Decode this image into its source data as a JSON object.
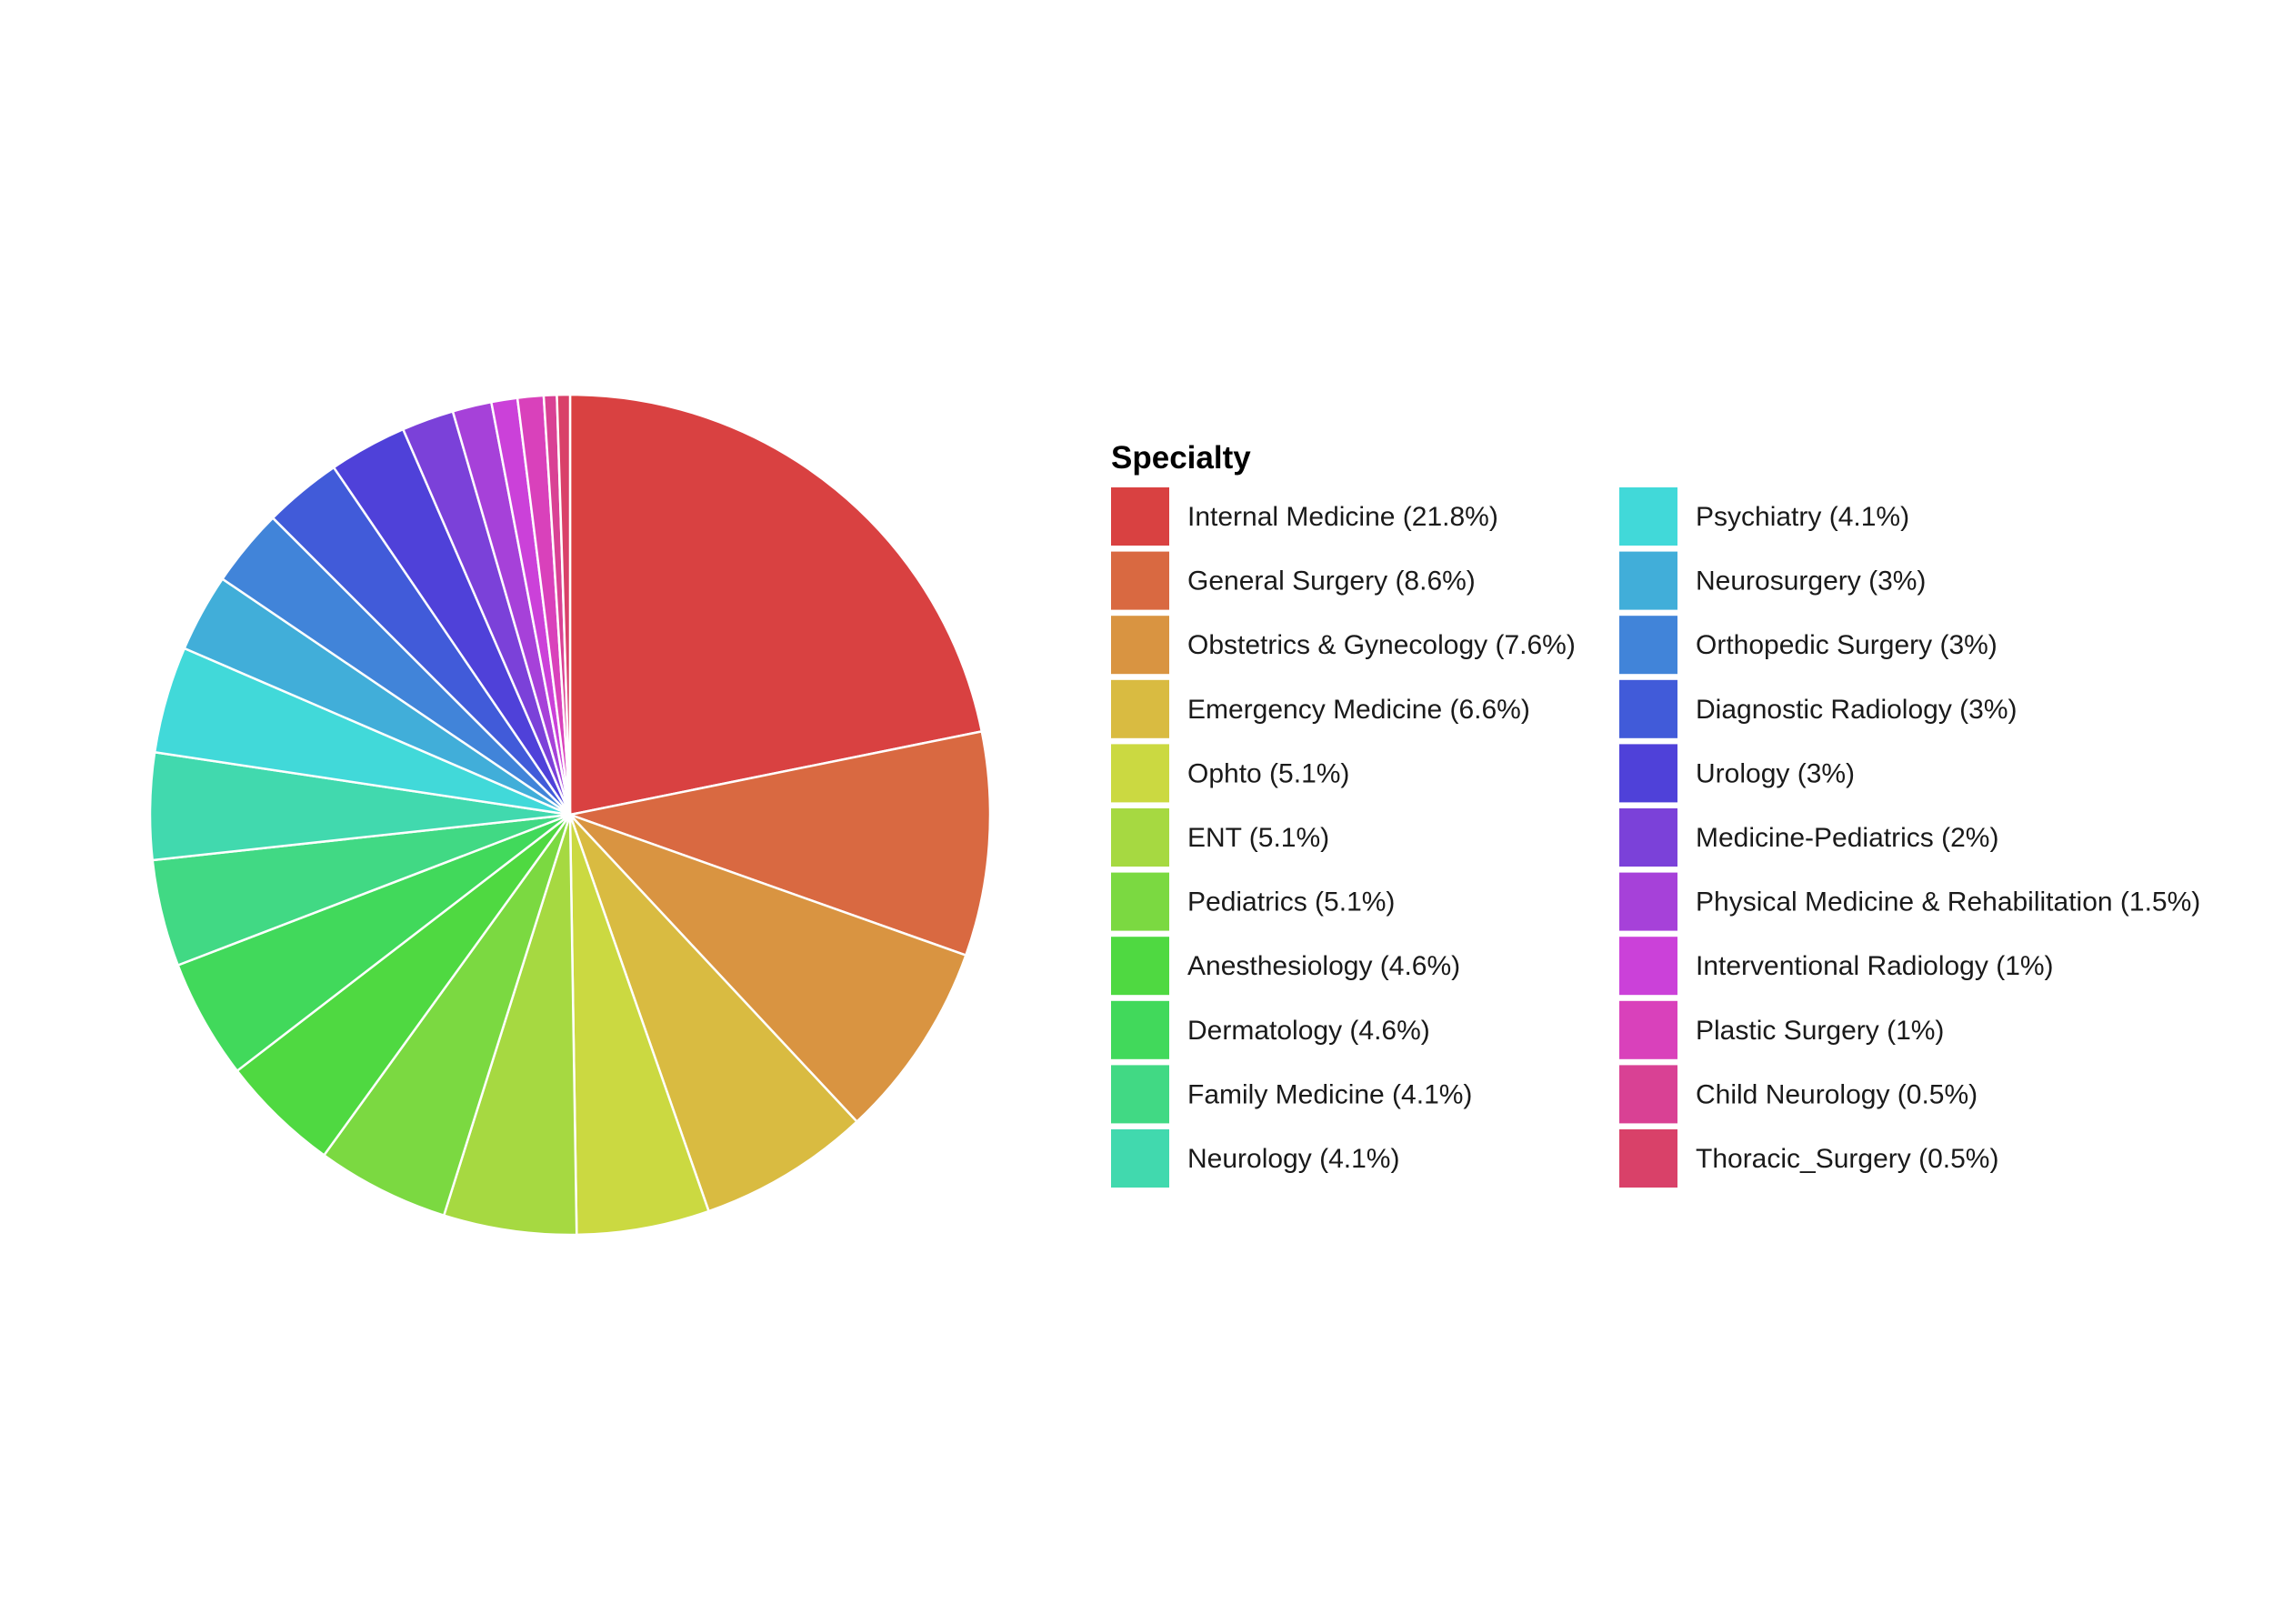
{
  "chart_data": {
    "type": "pie",
    "legend_title": "Specialty",
    "legend_position": "right",
    "direction": "clockwise-from-top",
    "slices": [
      {
        "label": "Internal Medicine (21.8%)",
        "value": 21.8,
        "color": "#D94141"
      },
      {
        "label": "General Surgery (8.6%)",
        "value": 8.6,
        "color": "#D96941"
      },
      {
        "label": "Obstetrics & Gynecology (7.6%)",
        "value": 7.6,
        "color": "#D99441"
      },
      {
        "label": "Emergency Medicine (6.6%)",
        "value": 6.6,
        "color": "#D9BB41"
      },
      {
        "label": "Ophto (5.1%)",
        "value": 5.1,
        "color": "#CBD941"
      },
      {
        "label": "ENT (5.1%)",
        "value": 5.1,
        "color": "#A6D941"
      },
      {
        "label": "Pediatrics (5.1%)",
        "value": 5.1,
        "color": "#7BD941"
      },
      {
        "label": "Anesthesiology (4.6%)",
        "value": 4.6,
        "color": "#4FD941"
      },
      {
        "label": "Dermatology (4.6%)",
        "value": 4.6,
        "color": "#41D95B"
      },
      {
        "label": "Family Medicine (4.1%)",
        "value": 4.1,
        "color": "#41D984"
      },
      {
        "label": "Neurology (4.1%)",
        "value": 4.1,
        "color": "#41D9AE"
      },
      {
        "label": "Psychiatry (4.1%)",
        "value": 4.1,
        "color": "#41D9D9"
      },
      {
        "label": "Neurosurgery (3%)",
        "value": 3.0,
        "color": "#41AED9"
      },
      {
        "label": "Orthopedic Surgery (3%)",
        "value": 3.0,
        "color": "#4184D9"
      },
      {
        "label": "Diagnostic Radiology (3%)",
        "value": 3.0,
        "color": "#415BD9"
      },
      {
        "label": "Urology (3%)",
        "value": 3.0,
        "color": "#4F41D9"
      },
      {
        "label": "Medicine-Pediatrics (2%)",
        "value": 2.0,
        "color": "#7B41D9"
      },
      {
        "label": "Physical Medicine & Rehabilitation (1.5%)",
        "value": 1.5,
        "color": "#A641D9"
      },
      {
        "label": "Interventional Radiology (1%)",
        "value": 1.0,
        "color": "#CB41D9"
      },
      {
        "label": "Plastic Surgery (1%)",
        "value": 1.0,
        "color": "#D941BB"
      },
      {
        "label": "Child Neurology (0.5%)",
        "value": 0.5,
        "color": "#D94194"
      },
      {
        "label": "Thoracic_Surgery (0.5%)",
        "value": 0.5,
        "color": "#D94169"
      }
    ]
  }
}
